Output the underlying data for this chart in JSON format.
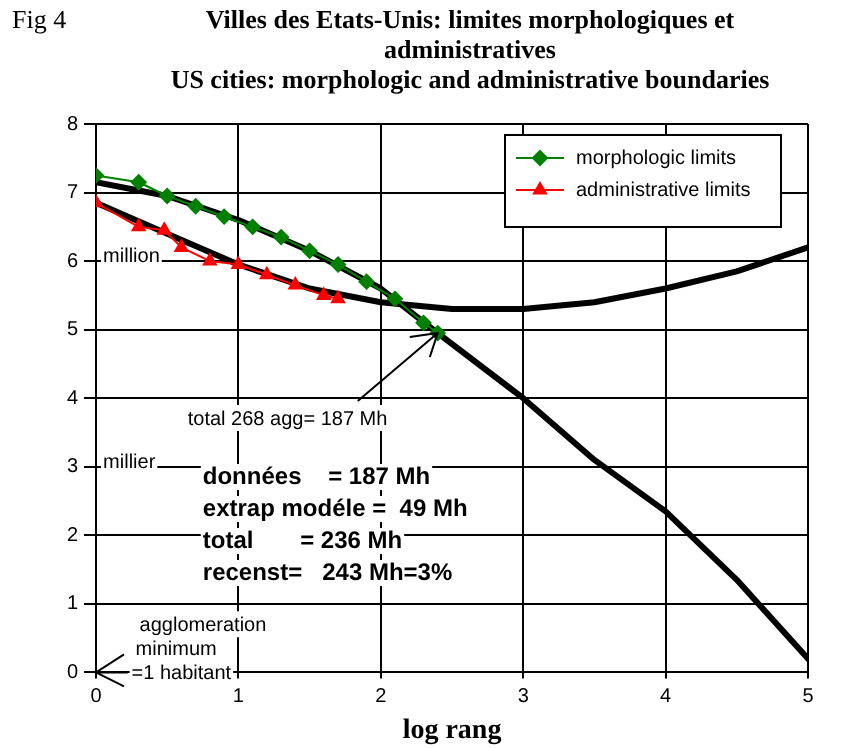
{
  "chart_data": {
    "type": "line",
    "title": "Villes des Etats-Unis: limites morphologiques et administratives",
    "subtitle": "US cities: morphologic and administrative boundaries",
    "xlabel": "log rang",
    "xlim": [
      0,
      5
    ],
    "xticks": [
      0,
      1,
      2,
      3,
      4,
      5
    ],
    "ylim": [
      0,
      8
    ],
    "yticks": [
      0,
      1,
      2,
      3,
      4,
      5,
      6,
      7,
      8
    ],
    "grid": true,
    "legend": "top right",
    "series": [
      {
        "name": "morphologic limits",
        "color": "#008000",
        "marker": "diamond",
        "x": [
          0,
          0.3,
          0.5,
          0.7,
          0.9,
          1.1,
          1.3,
          1.5,
          1.7,
          1.9,
          2.1,
          2.3,
          2.4
        ],
        "values": [
          7.25,
          7.15,
          6.95,
          6.8,
          6.65,
          6.5,
          6.35,
          6.15,
          5.95,
          5.7,
          5.45,
          5.1,
          4.95
        ]
      },
      {
        "name": "administrative limits",
        "color": "#ff0000",
        "marker": "triangle",
        "x": [
          0,
          0.3,
          0.48,
          0.6,
          0.8,
          1.0,
          1.2,
          1.4,
          1.6,
          1.7
        ],
        "values": [
          6.85,
          6.5,
          6.45,
          6.2,
          6.0,
          5.95,
          5.8,
          5.65,
          5.5,
          5.45
        ]
      },
      {
        "color": "#000000",
        "marker": "none",
        "x": [
          0,
          0.5,
          1,
          1.5,
          2,
          2.4,
          3,
          3.5,
          4,
          4.5,
          5
        ],
        "values": [
          7.15,
          6.95,
          6.6,
          6.15,
          5.6,
          4.95,
          4.0,
          3.1,
          2.35,
          1.35,
          0.2
        ]
      },
      {
        "color": "#000000",
        "marker": "none",
        "x": [
          0,
          0.5,
          1,
          1.5,
          2,
          2.5,
          3,
          3.5,
          4,
          4.5,
          5
        ],
        "values": [
          6.85,
          6.4,
          5.95,
          5.6,
          5.4,
          5.3,
          5.3,
          5.4,
          5.6,
          5.85,
          6.2
        ]
      }
    ],
    "annotations": [
      "Fig 4",
      "million",
      "millier",
      {
        "text": "total 268 agg= 187 Mh",
        "x": 2.4,
        "y": 4.95
      },
      "agglomeration minimum =1 habitant",
      "données    = 187 Mh",
      "extrap modéle =  49 Mh",
      "total       = 236 Mh",
      "recenst=   243 Mh=3%"
    ]
  }
}
